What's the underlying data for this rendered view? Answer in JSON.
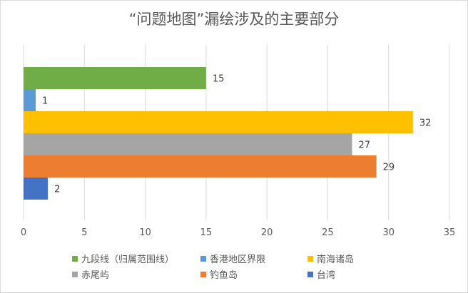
{
  "chart_data": {
    "type": "bar",
    "orientation": "horizontal",
    "title": "“问题地图”漏绘涉及的主要部分",
    "xlabel": "",
    "ylabel": "",
    "xlim": [
      0,
      35
    ],
    "x_ticks": [
      "0",
      "5",
      "10",
      "15",
      "20",
      "25",
      "30",
      "35"
    ],
    "grid": true,
    "legend_position": "bottom",
    "series": [
      {
        "name": "九段线（归属范围线）",
        "value": 15,
        "color": "#70ad47"
      },
      {
        "name": "香港地区界限",
        "value": 1,
        "color": "#5b9bd5"
      },
      {
        "name": "南海诸岛",
        "value": 32,
        "color": "#ffc000"
      },
      {
        "name": "赤尾屿",
        "value": 27,
        "color": "#a5a5a5"
      },
      {
        "name": "钓鱼岛",
        "value": 29,
        "color": "#ed7d31"
      },
      {
        "name": "台湾",
        "value": 2,
        "color": "#4472c4"
      }
    ]
  }
}
